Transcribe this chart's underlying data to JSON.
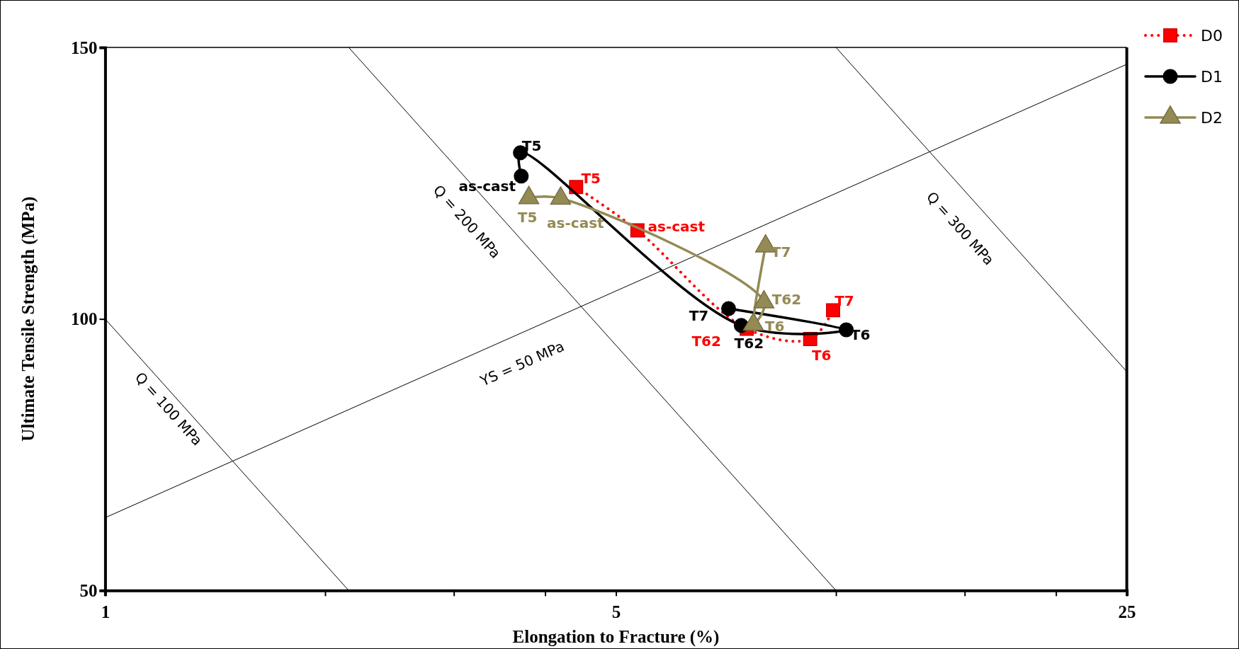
{
  "chart_data": {
    "type": "line",
    "xlabel": "Elongation to Fracture (%)",
    "ylabel": "Ultimate Tensile Strength (MPa)",
    "log": "x",
    "xlim": [
      1,
      25
    ],
    "xticks": [
      1,
      {
        "value": 2,
        "label": null
      },
      {
        "value": 3,
        "label": null
      },
      {
        "value": 4,
        "label": null
      },
      5,
      {
        "value": 10,
        "label": null
      },
      {
        "value": 15,
        "label": null
      },
      {
        "value": 20,
        "label": null
      },
      25
    ],
    "ylim": [
      50,
      150
    ],
    "yticks": [
      50,
      100,
      150
    ],
    "grid": false,
    "legend": "top right",
    "series": [
      {
        "name": "D0",
        "color": "#ff0000",
        "marker": "square",
        "line_style": "dotted",
        "x": [
          4.41,
          5.35,
          7.55,
          9.22,
          9.91
        ],
        "values": [
          124.3,
          116.3,
          98.2,
          96.3,
          101.6
        ],
        "value_labels": [
          "T5",
          "as-cast",
          "T62",
          "T6",
          "T7"
        ]
      },
      {
        "name": "D1",
        "color": "#000000",
        "marker": "circle",
        "line_style": "solid",
        "x": [
          3.71,
          3.7,
          7.42,
          10.33,
          7.13
        ],
        "values": [
          126.3,
          130.6,
          98.8,
          98.0,
          101.9
        ],
        "value_labels": [
          "as-cast",
          "T5",
          "T62",
          "T6",
          "T7"
        ]
      },
      {
        "name": "D2",
        "color": "#948a54",
        "marker": "triangle",
        "line_style": "solid",
        "x": [
          3.8,
          4.2,
          7.97,
          7.71,
          8.01
        ],
        "values": [
          122.3,
          122.2,
          103.1,
          99.0,
          113.4
        ],
        "value_labels": [
          "T5",
          "as-cast",
          "T62",
          "T6",
          "T7"
        ]
      },
      {
        "name": "Q = 100 MPa",
        "type": "line",
        "color": "#000000",
        "x": [
          1,
          2.154
        ],
        "values": [
          100,
          50
        ]
      },
      {
        "name": "Q = 200 MPa",
        "type": "line",
        "color": "#000000",
        "x": [
          2.154,
          10
        ],
        "values": [
          150,
          50
        ]
      },
      {
        "name": "Q = 300 MPa",
        "type": "line",
        "color": "#000000",
        "x": [
          10,
          25
        ],
        "values": [
          150,
          90.3
        ]
      },
      {
        "name": "YS = 50 MPa",
        "type": "line",
        "color": "#000000",
        "x": [
          1,
          25
        ],
        "values": [
          63.4,
          146.9
        ]
      }
    ]
  }
}
